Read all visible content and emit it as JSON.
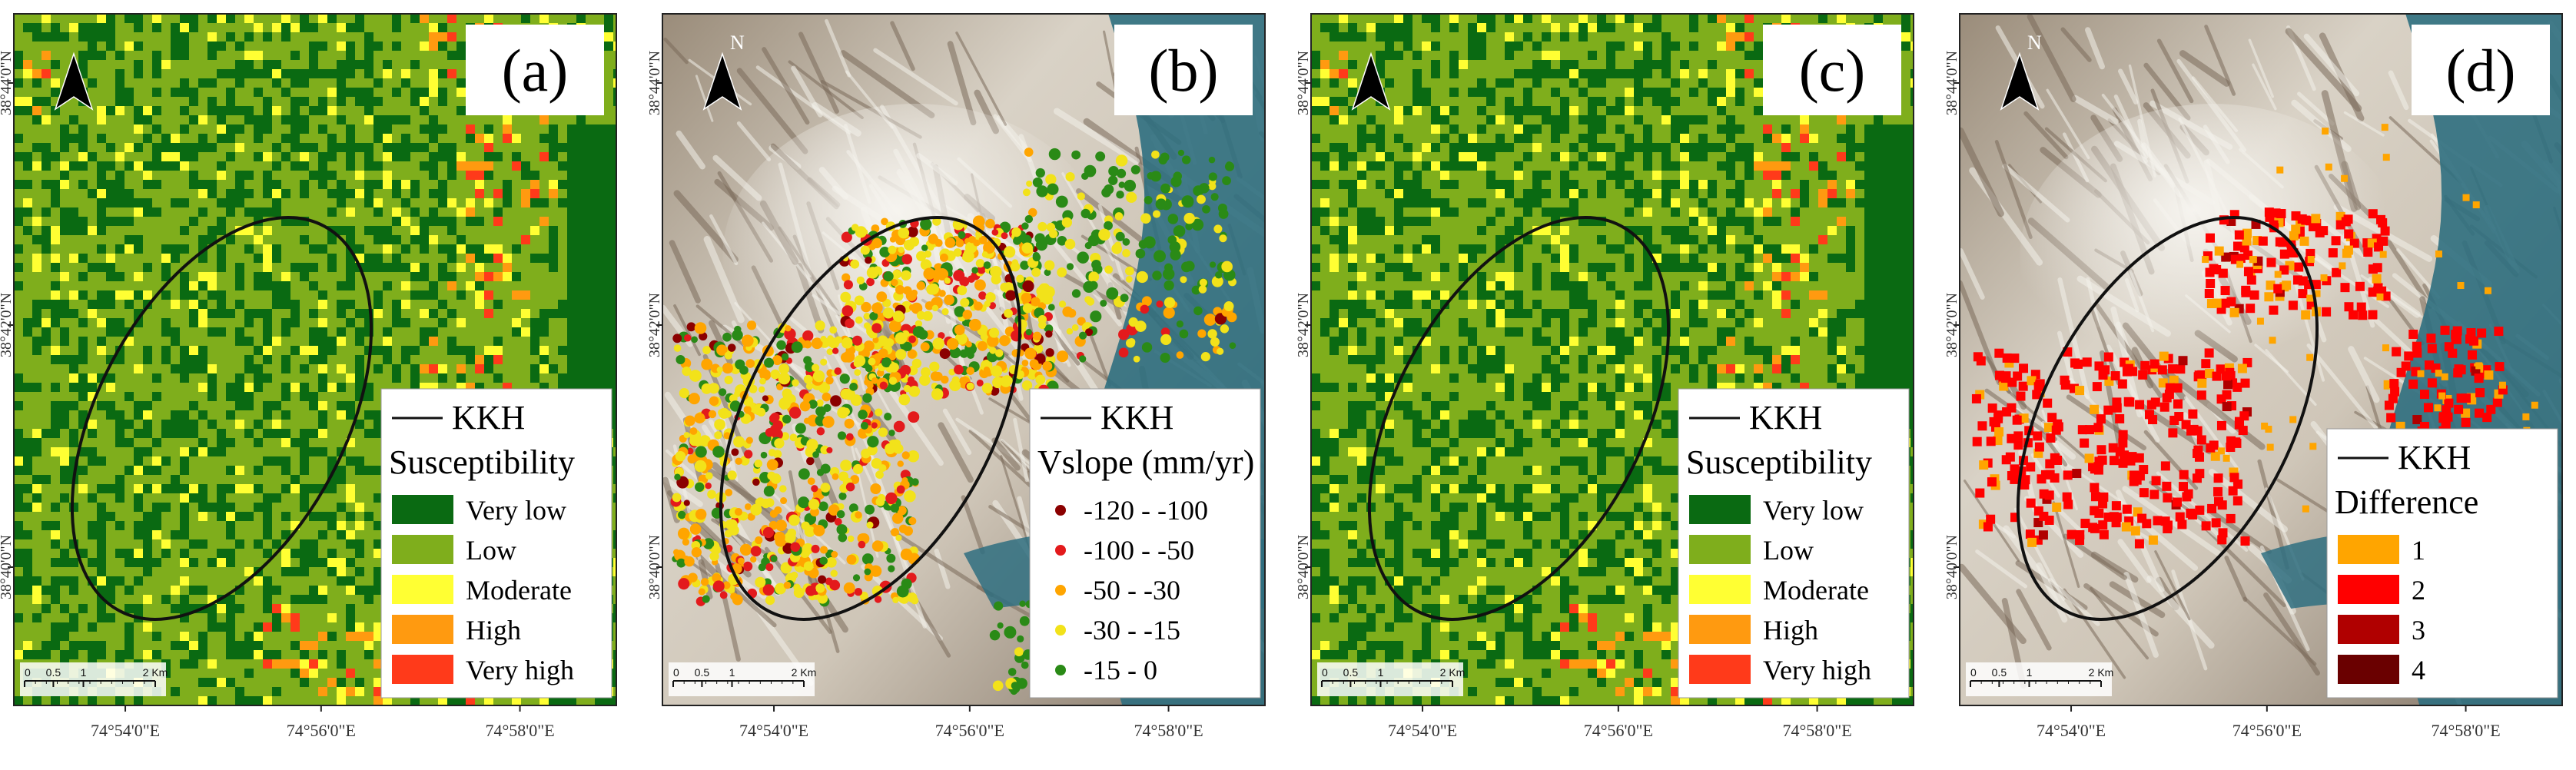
{
  "colors": {
    "very_low": "#0a6a12",
    "low": "#7fae1c",
    "moderate": "#ffff33",
    "high": "#ff9a10",
    "very_high": "#ff3a1a",
    "v1": "#8b0000",
    "v2": "#e31a1c",
    "v3": "#ffa500",
    "v4": "#f2e21a",
    "v5": "#2a8a16",
    "d1": "#ffa500",
    "d2": "#ff0000",
    "d3": "#b00000",
    "d4": "#6a0000",
    "water": "#2f6f80",
    "terrain_light": "#e6dfd3",
    "terrain_dark": "#8a7a68"
  },
  "x_ticks": [
    "74°54'0\"E",
    "74°56'0\"E",
    "74°58'0\"E"
  ],
  "y_ticks": [
    "38°44'0\"N",
    "38°42'0\"N",
    "38°40'0\"N"
  ],
  "north_label": "N",
  "scale_bar": {
    "labels": [
      "0",
      "0.5",
      "1",
      "2 Km"
    ]
  },
  "panels": [
    {
      "id": "a",
      "label": "(a)",
      "kind": "susceptibility",
      "legend": {
        "line_label": "KKH",
        "title": "Susceptibility",
        "items": [
          {
            "label": "Very low",
            "color": "#0a6a12"
          },
          {
            "label": "Low",
            "color": "#7fae1c"
          },
          {
            "label": "Moderate",
            "color": "#ffff33"
          },
          {
            "label": "High",
            "color": "#ff9a10"
          },
          {
            "label": "Very high",
            "color": "#ff3a1a"
          }
        ]
      }
    },
    {
      "id": "b",
      "label": "(b)",
      "kind": "velocity",
      "legend": {
        "line_label": "KKH",
        "title": "Vslope (mm/yr)",
        "items": [
          {
            "label": "-120 - -100",
            "color": "#8b0000"
          },
          {
            "label": "-100 - -50",
            "color": "#e31a1c"
          },
          {
            "label": "-50 - -30",
            "color": "#ffa500"
          },
          {
            "label": "-30 - -15",
            "color": "#f2e21a"
          },
          {
            "label": "-15 - 0",
            "color": "#2a8a16"
          }
        ]
      }
    },
    {
      "id": "c",
      "label": "(c)",
      "kind": "susceptibility",
      "legend": {
        "line_label": "KKH",
        "title": "Susceptibility",
        "items": [
          {
            "label": "Very low",
            "color": "#0a6a12"
          },
          {
            "label": "Low",
            "color": "#7fae1c"
          },
          {
            "label": "Moderate",
            "color": "#ffff33"
          },
          {
            "label": "High",
            "color": "#ff9a10"
          },
          {
            "label": "Very high",
            "color": "#ff3a1a"
          }
        ]
      }
    },
    {
      "id": "d",
      "label": "(d)",
      "kind": "difference",
      "legend": {
        "line_label": "KKH",
        "title": "Difference",
        "items": [
          {
            "label": "1",
            "color": "#ffa500"
          },
          {
            "label": "2",
            "color": "#ff0000"
          },
          {
            "label": "3",
            "color": "#b00000"
          },
          {
            "label": "4",
            "color": "#6a0000"
          }
        ]
      }
    }
  ]
}
